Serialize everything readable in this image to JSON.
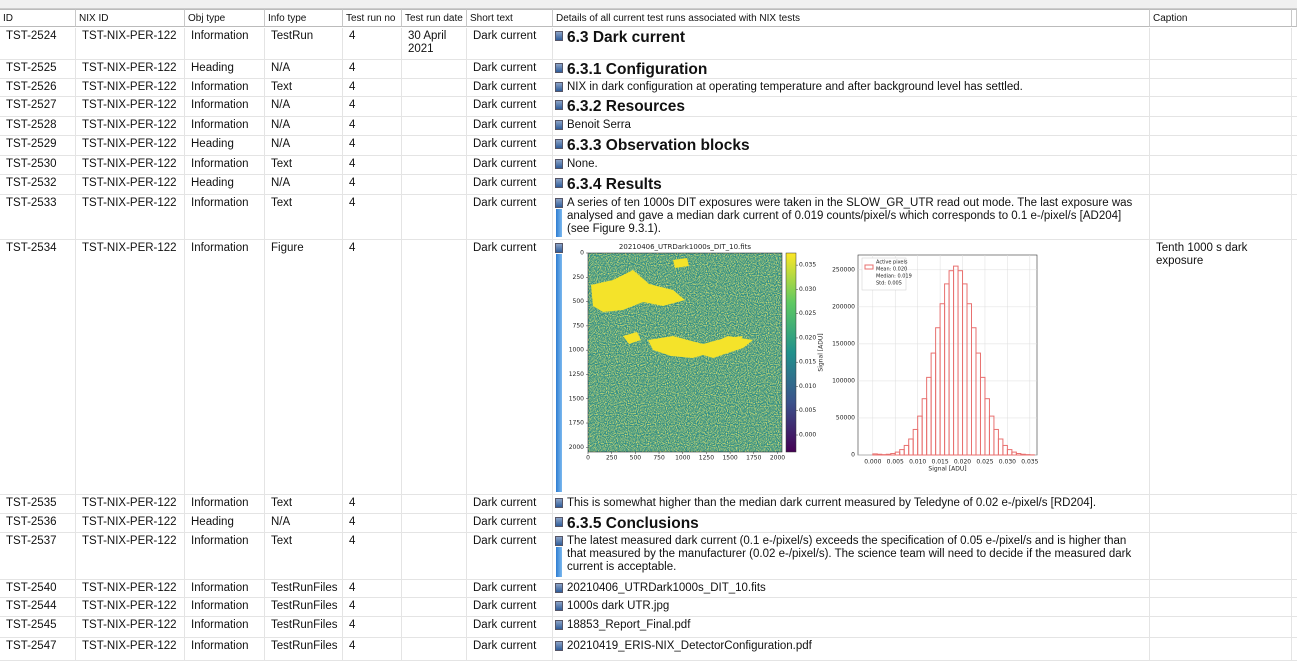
{
  "table": {
    "columns": [
      "ID",
      "NIX ID",
      "Obj type",
      "Info type",
      "Test run no",
      "Test run date",
      "Short text",
      "Details of all current test runs associated with NIX tests",
      "Caption"
    ],
    "rows": [
      {
        "id": "TST-2524",
        "nix_id": "TST-NIX-PER-122",
        "obj_type": "Information",
        "info_type": "TestRun",
        "test_run_no": "4",
        "test_run_date": "30 April 2021",
        "short_text": "Dark current",
        "details": "6.3 Dark current"
      },
      {
        "id": "TST-2525",
        "nix_id": "TST-NIX-PER-122",
        "obj_type": "Heading",
        "info_type": "N/A",
        "test_run_no": "4",
        "short_text": "Dark current",
        "details": "6.3.1 Configuration"
      },
      {
        "id": "TST-2526",
        "nix_id": "TST-NIX-PER-122",
        "obj_type": "Information",
        "info_type": "Text",
        "test_run_no": "4",
        "short_text": "Dark current",
        "details": "NIX in dark configuration at operating temperature and after background level has settled."
      },
      {
        "id": "TST-2527",
        "nix_id": "TST-NIX-PER-122",
        "obj_type": "Information",
        "info_type": "N/A",
        "test_run_no": "4",
        "short_text": "Dark current",
        "details": "6.3.2 Resources"
      },
      {
        "id": "TST-2528",
        "nix_id": "TST-NIX-PER-122",
        "obj_type": "Information",
        "info_type": "N/A",
        "test_run_no": "4",
        "short_text": "Dark current",
        "details": "Benoit Serra"
      },
      {
        "id": "TST-2529",
        "nix_id": "TST-NIX-PER-122",
        "obj_type": "Heading",
        "info_type": "N/A",
        "test_run_no": "4",
        "short_text": "Dark current",
        "details": "6.3.3 Observation blocks"
      },
      {
        "id": "TST-2530",
        "nix_id": "TST-NIX-PER-122",
        "obj_type": "Information",
        "info_type": "Text",
        "test_run_no": "4",
        "short_text": "Dark current",
        "details": "None."
      },
      {
        "id": "TST-2532",
        "nix_id": "TST-NIX-PER-122",
        "obj_type": "Heading",
        "info_type": "N/A",
        "test_run_no": "4",
        "short_text": "Dark current",
        "details": "6.3.4 Results"
      },
      {
        "id": "TST-2533",
        "nix_id": "TST-NIX-PER-122",
        "obj_type": "Information",
        "info_type": "Text",
        "test_run_no": "4",
        "short_text": "Dark current",
        "details": "A series of ten 1000s DIT exposures were taken in the SLOW_GR_UTR read out mode. The last exposure was analysed and gave a median dark current of 0.019 counts/pixel/s which corresponds to 0.1 e-/pixel/s [AD204] (see Figure 9.3.1)."
      },
      {
        "id": "TST-2534",
        "nix_id": "TST-NIX-PER-122",
        "obj_type": "Information",
        "info_type": "Figure",
        "test_run_no": "4",
        "short_text": "Dark current",
        "caption": "Tenth 1000 s dark exposure",
        "figure": {
          "image": {
            "title": "20210406_UTRDark1000s_DIT_10.fits",
            "xlim": [
              0,
              2048
            ],
            "ylim": [
              0,
              2048
            ],
            "xticks": [
              0,
              250,
              500,
              750,
              1000,
              1250,
              1500,
              1750,
              2000
            ],
            "yticks": [
              0,
              250,
              500,
              750,
              1000,
              1250,
              1500,
              1750,
              2000
            ],
            "colorbar_label": "Signal [ADU]",
            "colorbar_lim": [
              -0.0035,
              0.0375
            ],
            "colorbar_ticks": [
              {
                "value": 0,
                "label": "0.000"
              },
              {
                "value": 0.005,
                "label": "0.005"
              },
              {
                "value": 0.01,
                "label": "0.010"
              },
              {
                "value": 0.015,
                "label": "0.015"
              },
              {
                "value": 0.02,
                "label": "0.020"
              },
              {
                "value": 0.025,
                "label": "0.025"
              },
              {
                "value": 0.03,
                "label": "0.030"
              },
              {
                "value": 0.035,
                "label": "0.035"
              }
            ]
          },
          "histogram": {
            "xlabel": "Signal [ADU]",
            "legend": [
              "Active pixels",
              "Mean: 0.020",
              "Median: 0.019",
              "Std: 0.005"
            ],
            "color": "#e8706f",
            "xlim": [
              -0.0033,
              0.0366
            ],
            "ylim": [
              0,
              270000
            ],
            "xticks": [
              {
                "value": 0,
                "label": "0.000"
              },
              {
                "value": 0.005,
                "label": "0.005"
              },
              {
                "value": 0.01,
                "label": "0.010"
              },
              {
                "value": 0.015,
                "label": "0.015"
              },
              {
                "value": 0.02,
                "label": "0.020"
              },
              {
                "value": 0.025,
                "label": "0.025"
              },
              {
                "value": 0.03,
                "label": "0.030"
              },
              {
                "value": 0.035,
                "label": "0.035"
              }
            ],
            "yticks": [
              0,
              50000,
              100000,
              150000,
              200000,
              250000
            ],
            "bins": [
              0,
              0.001,
              0.002,
              0.003,
              0.004,
              0.005,
              0.006,
              0.007,
              0.008,
              0.009,
              0.01,
              0.011,
              0.012,
              0.013,
              0.014,
              0.015,
              0.016,
              0.017,
              0.018,
              0.019,
              0.02,
              0.021,
              0.022,
              0.023,
              0.024,
              0.025,
              0.026,
              0.027,
              0.028,
              0.029,
              0.03,
              0.031,
              0.032,
              0.033,
              0.034,
              0.035,
              0.036
            ],
            "counts": [
              1500,
              1000,
              500,
              1000,
              2000,
              3900,
              7300,
              12900,
              21600,
              34500,
              52500,
              76000,
              104800,
              137600,
              171800,
              204200,
              231000,
              248800,
              255000,
              248800,
              231000,
              204200,
              171800,
              137600,
              104800,
              76000,
              52500,
              34500,
              21600,
              12900,
              7300,
              3900,
              2000,
              1000,
              500,
              200
            ]
          }
        }
      },
      {
        "id": "TST-2535",
        "nix_id": "TST-NIX-PER-122",
        "obj_type": "Information",
        "info_type": "Text",
        "test_run_no": "4",
        "short_text": "Dark current",
        "details": "This is somewhat higher than the median dark current measured by Teledyne of 0.02 e-/pixel/s [RD204]."
      },
      {
        "id": "TST-2536",
        "nix_id": "TST-NIX-PER-122",
        "obj_type": "Heading",
        "info_type": "N/A",
        "test_run_no": "4",
        "short_text": "Dark current",
        "details": "6.3.5 Conclusions"
      },
      {
        "id": "TST-2537",
        "nix_id": "TST-NIX-PER-122",
        "obj_type": "Information",
        "info_type": "Text",
        "test_run_no": "4",
        "short_text": "Dark current",
        "details": "The latest measured dark current (0.1 e-/pixel/s) exceeds the specification of 0.05 e-/pixel/s and is higher than that measured by the manufacturer (0.02 e-/pixel/s). The science team will need to decide if the measured dark current is acceptable."
      },
      {
        "id": "TST-2540",
        "nix_id": "TST-NIX-PER-122",
        "obj_type": "Information",
        "info_type": "TestRunFiles",
        "test_run_no": "4",
        "short_text": "Dark current",
        "details": "20210406_UTRDark1000s_DIT_10.fits"
      },
      {
        "id": "TST-2544",
        "nix_id": "TST-NIX-PER-122",
        "obj_type": "Information",
        "info_type": "TestRunFiles",
        "test_run_no": "4",
        "short_text": "Dark current",
        "details": "1000s dark UTR.jpg"
      },
      {
        "id": "TST-2545",
        "nix_id": "TST-NIX-PER-122",
        "obj_type": "Information",
        "info_type": "TestRunFiles",
        "test_run_no": "4",
        "short_text": "Dark current",
        "details": "18853_Report_Final.pdf"
      },
      {
        "id": "TST-2547",
        "nix_id": "TST-NIX-PER-122",
        "obj_type": "Information",
        "info_type": "TestRunFiles",
        "test_run_no": "4",
        "short_text": "Dark current",
        "details": "20210419_ERIS-NIX_DetectorConfiguration.pdf"
      }
    ]
  }
}
